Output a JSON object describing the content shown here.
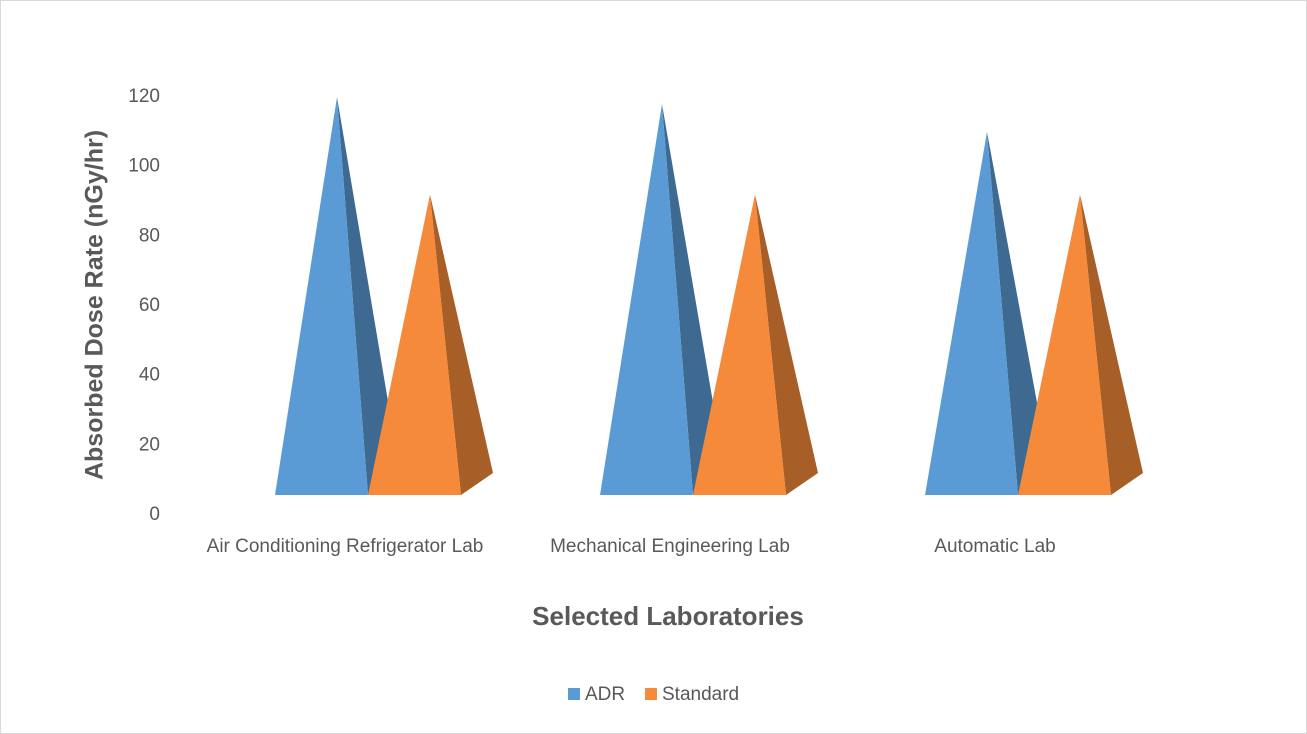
{
  "chart_data": {
    "type": "pyramid",
    "y_axis_label": "Absorbed Dose Rate (nGy/hr)",
    "x_axis_label": "Selected Laboratories",
    "categories": [
      "Air Conditioning Refrigerator Lab",
      "Mechanical Engineering Lab",
      "Automatic Lab"
    ],
    "series": [
      {
        "name": "ADR",
        "color": "#5b9bd5",
        "values": [
          120,
          118,
          110
        ]
      },
      {
        "name": "Standard",
        "color": "#f58a3a",
        "values": [
          92,
          92,
          92
        ]
      }
    ],
    "ylim": [
      0,
      120
    ],
    "yticks": [
      0,
      20,
      40,
      60,
      80,
      100,
      120
    ],
    "legend": "bottom"
  }
}
